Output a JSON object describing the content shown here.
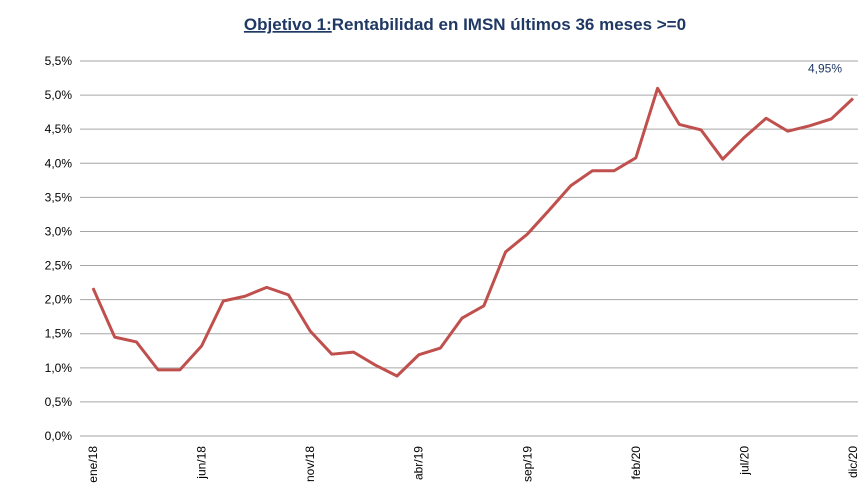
{
  "chart_data": {
    "type": "line",
    "title": [
      "Objetivo 1:",
      "Rentabilidad en IMSN  últimos 36 meses >=0"
    ],
    "categories": [
      "ene/18",
      null,
      null,
      null,
      null,
      "jun/18",
      null,
      null,
      null,
      null,
      "nov/18",
      null,
      null,
      null,
      null,
      "abr/19",
      null,
      null,
      null,
      null,
      "sep/19",
      null,
      null,
      null,
      null,
      "feb/20",
      null,
      null,
      null,
      null,
      "jul/20",
      null,
      null,
      null,
      null,
      "dic/20"
    ],
    "series": [
      {
        "name": "Rentabilidad",
        "color": "#c0504d",
        "values": [
          2.17,
          1.45,
          1.38,
          0.97,
          0.97,
          1.32,
          1.98,
          2.05,
          2.18,
          2.07,
          1.54,
          1.2,
          1.23,
          1.04,
          0.88,
          1.19,
          1.29,
          1.73,
          1.91,
          2.7,
          2.96,
          3.31,
          3.67,
          3.89,
          3.89,
          4.08,
          5.1,
          4.57,
          4.49,
          4.06,
          4.38,
          4.66,
          4.47,
          4.55,
          4.65,
          4.95
        ],
        "value_labels": [
          null,
          null,
          null,
          null,
          null,
          null,
          null,
          null,
          null,
          null,
          null,
          null,
          null,
          null,
          null,
          null,
          null,
          null,
          null,
          null,
          null,
          null,
          null,
          null,
          null,
          null,
          null,
          null,
          null,
          null,
          null,
          null,
          null,
          null,
          null,
          "4,95%"
        ]
      }
    ],
    "ylim": [
      0,
      5.5
    ],
    "yticks": [
      {
        "value": 0,
        "label": "0,0%"
      },
      {
        "value": 0.5,
        "label": "0,5%"
      },
      {
        "value": 1,
        "label": "1,0%"
      },
      {
        "value": 1.5,
        "label": "1,5%"
      },
      {
        "value": 2,
        "label": "2,0%"
      },
      {
        "value": 2.5,
        "label": "2,5%"
      },
      {
        "value": 3,
        "label": "3,0%"
      },
      {
        "value": 3.5,
        "label": "3,5%"
      },
      {
        "value": 4,
        "label": "4,0%"
      },
      {
        "value": 4.5,
        "label": "4,5%"
      },
      {
        "value": 5,
        "label": "5,0%"
      },
      {
        "value": 5.5,
        "label": "5,5%"
      }
    ],
    "grid": true
  }
}
